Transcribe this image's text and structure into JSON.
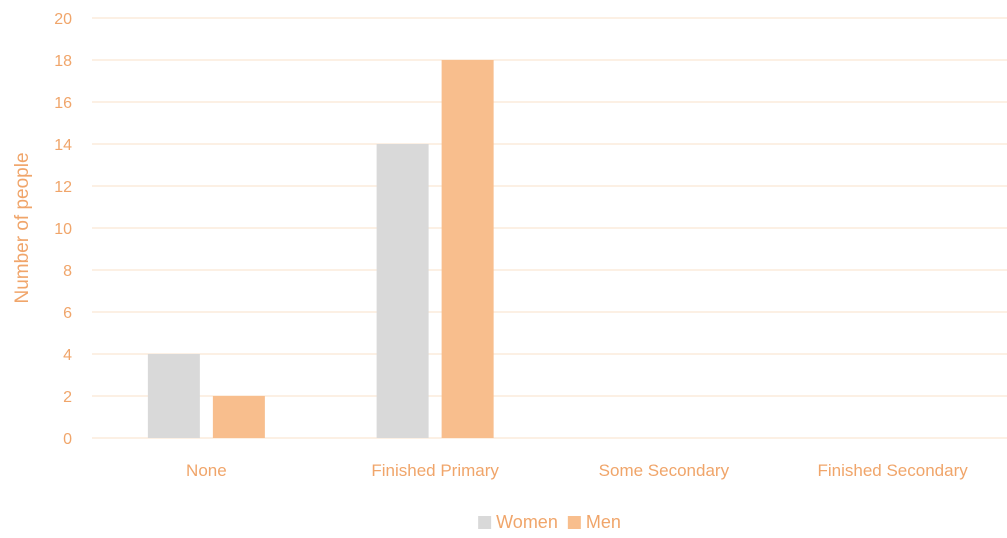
{
  "chart_data": {
    "type": "bar",
    "categories": [
      "None",
      "Finished Primary",
      "Some Secondary",
      "Finished Secondary"
    ],
    "series": [
      {
        "name": "Women",
        "values": [
          4,
          14,
          0,
          0
        ],
        "color": "#d9d9d9"
      },
      {
        "name": "Men",
        "values": [
          2,
          18,
          0,
          0
        ],
        "color": "#f8be8d"
      }
    ],
    "ylabel": "Number of people",
    "xlabel": "",
    "ylim": [
      0,
      20
    ],
    "yticks": [
      0,
      2,
      4,
      6,
      8,
      10,
      12,
      14,
      16,
      18,
      20
    ],
    "grid": true,
    "legend_position": "bottom",
    "text_color": "#f0a56a",
    "grid_color": "#fbe6d3"
  }
}
